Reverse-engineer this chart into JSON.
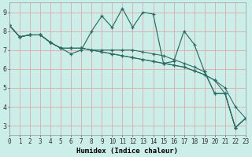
{
  "xlabel": "Humidex (Indice chaleur)",
  "bg_color": "#cceee8",
  "grid_color": "#ddaaaa",
  "line_color": "#2a6b62",
  "x": [
    0,
    1,
    2,
    3,
    4,
    5,
    6,
    7,
    8,
    9,
    10,
    11,
    12,
    13,
    14,
    15,
    16,
    17,
    18,
    19,
    20,
    21,
    22,
    23
  ],
  "data_main": [
    8.3,
    7.7,
    7.8,
    7.8,
    7.4,
    7.1,
    6.8,
    7.0,
    8.0,
    8.8,
    8.2,
    9.2,
    8.2,
    9.0,
    8.9,
    6.3,
    6.4,
    8.0,
    7.3,
    5.85,
    4.7,
    4.7,
    2.9,
    3.4
  ],
  "data_line2": [
    8.3,
    7.7,
    7.8,
    7.8,
    7.4,
    7.1,
    7.1,
    7.1,
    7.0,
    6.9,
    6.8,
    6.7,
    6.6,
    6.5,
    6.4,
    6.3,
    6.2,
    6.1,
    5.9,
    5.7,
    5.4,
    4.7,
    2.9,
    3.4
  ],
  "data_line3": [
    8.3,
    7.7,
    7.8,
    7.8,
    7.4,
    7.1,
    7.1,
    7.1,
    7.0,
    6.9,
    6.8,
    6.7,
    6.6,
    6.5,
    6.4,
    6.3,
    6.2,
    6.1,
    5.9,
    5.7,
    5.4,
    5.0,
    4.0,
    3.4
  ],
  "data_line4": [
    8.3,
    7.7,
    7.8,
    7.8,
    7.4,
    7.1,
    7.1,
    7.1,
    7.0,
    7.0,
    7.0,
    7.0,
    7.0,
    6.9,
    6.8,
    6.7,
    6.5,
    6.3,
    6.1,
    5.85,
    4.7,
    4.7,
    2.9,
    3.4
  ],
  "xlim": [
    0,
    23
  ],
  "ylim": [
    2.5,
    9.5
  ],
  "yticks": [
    3,
    4,
    5,
    6,
    7,
    8,
    9
  ],
  "xticks": [
    0,
    1,
    2,
    3,
    4,
    5,
    6,
    7,
    8,
    9,
    10,
    11,
    12,
    13,
    14,
    15,
    16,
    17,
    18,
    19,
    20,
    21,
    22,
    23
  ],
  "xlabel_fontsize": 6.5,
  "tick_fontsize": 5.5
}
